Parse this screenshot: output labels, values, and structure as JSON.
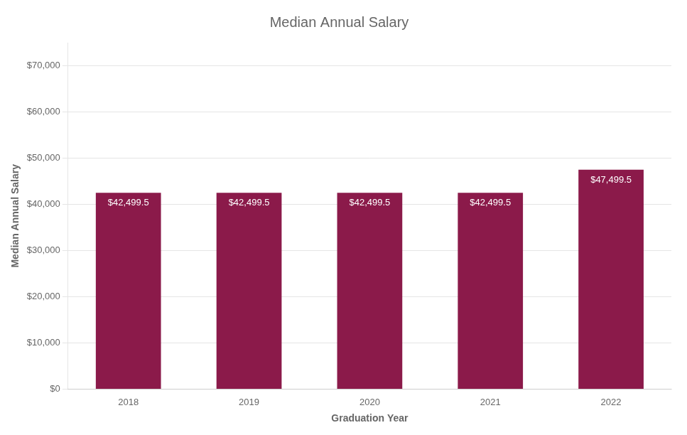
{
  "chart_data": {
    "type": "bar",
    "title": "Median Annual Salary",
    "xlabel": "Graduation Year",
    "ylabel": "Median Annual Salary",
    "categories": [
      "2018",
      "2019",
      "2020",
      "2021",
      "2022"
    ],
    "values": [
      42499.5,
      42499.5,
      42499.5,
      42499.5,
      47499.5
    ],
    "value_labels": [
      "$42,499.5",
      "$42,499.5",
      "$42,499.5",
      "$42,499.5",
      "$47,499.5"
    ],
    "data_labels": true,
    "color": "#8B1A4A",
    "ylim": [
      0,
      75000
    ],
    "yticks": [
      {
        "value": 0,
        "label": "$0"
      },
      {
        "value": 10000,
        "label": "$10,000"
      },
      {
        "value": 20000,
        "label": "$20,000"
      },
      {
        "value": 30000,
        "label": "$30,000"
      },
      {
        "value": 40000,
        "label": "$40,000"
      },
      {
        "value": 50000,
        "label": "$50,000"
      },
      {
        "value": 60000,
        "label": "$60,000"
      },
      {
        "value": 70000,
        "label": "$70,000"
      }
    ],
    "grid": true
  }
}
